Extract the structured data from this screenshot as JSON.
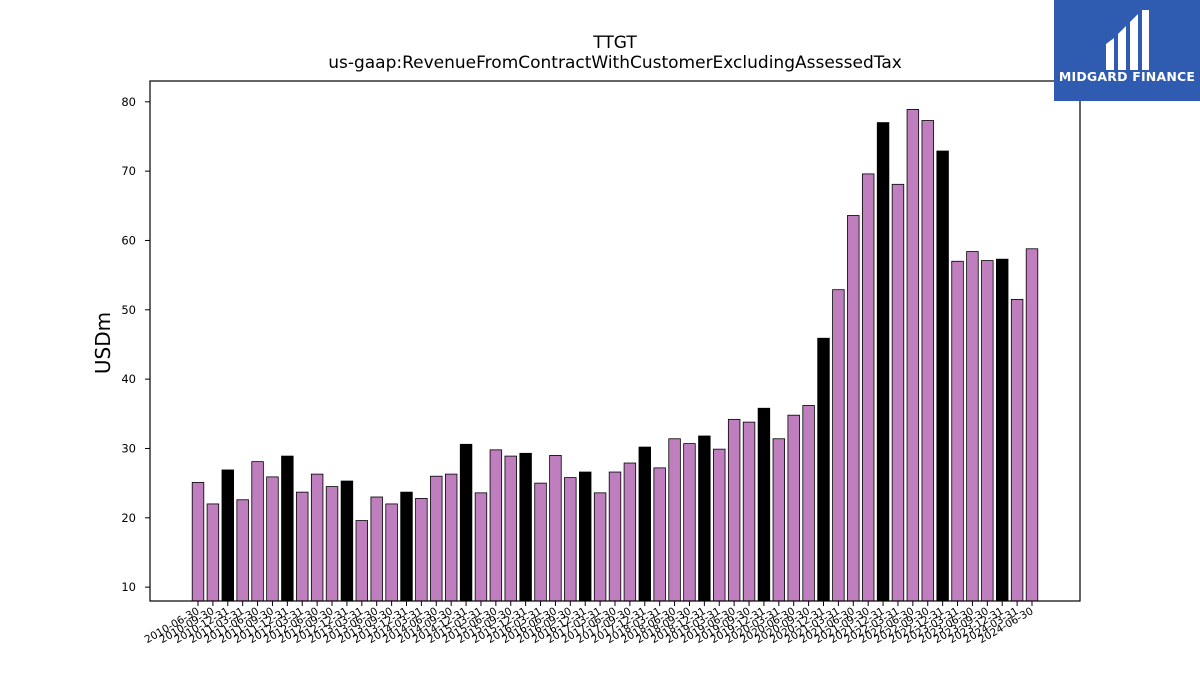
{
  "brand": {
    "name": "MIDGARD FINANCE",
    "logo_color": "#2f5cb0"
  },
  "chart_data": {
    "type": "bar",
    "title": "TTGT",
    "subtitle": "us-gaap:RevenueFromContractWithCustomerExcludingAssessedTax",
    "xlabel": "",
    "ylabel": "USDm",
    "ylim": [
      8,
      83
    ],
    "yticks": [
      10,
      20,
      30,
      40,
      50,
      60,
      70,
      80
    ],
    "grid": false,
    "colors": {
      "quarter": "#bf7fbf",
      "year_end": "#000000",
      "edge": "#000000"
    },
    "categories": [
      "2010-06-30",
      "2010-09-30",
      "2010-12-31",
      "2011-03-31",
      "2011-06-30",
      "2011-09-30",
      "2011-12-31",
      "2012-03-31",
      "2012-06-30",
      "2012-09-30",
      "2012-12-31",
      "2013-03-31",
      "2013-06-30",
      "2013-09-30",
      "2013-12-31",
      "2014-03-31",
      "2014-06-30",
      "2014-09-30",
      "2014-12-31",
      "2015-03-31",
      "2015-06-30",
      "2015-09-30",
      "2015-12-31",
      "2016-03-31",
      "2016-06-30",
      "2016-09-30",
      "2016-12-31",
      "2017-03-31",
      "2017-06-30",
      "2017-09-30",
      "2017-12-31",
      "2018-03-31",
      "2018-06-30",
      "2018-09-30",
      "2018-12-31",
      "2019-03-31",
      "2019-06-30",
      "2019-09-30",
      "2019-12-31",
      "2020-03-31",
      "2020-06-30",
      "2020-09-30",
      "2020-12-31",
      "2021-03-31",
      "2021-06-30",
      "2021-09-30",
      "2021-12-31",
      "2022-03-31",
      "2022-06-30",
      "2022-09-30",
      "2022-12-31",
      "2023-03-31",
      "2023-06-30",
      "2023-09-30",
      "2023-12-31",
      "2024-03-31",
      "2024-06-30"
    ],
    "tick_labels": [
      "2010-06-30",
      "2010-09-30",
      "2010-12-31",
      "2011-03-31",
      "2011-06-30",
      "2011-09-30",
      "2011-12-31",
      "2012-03-31",
      "2012-06-30",
      "2012-09-30",
      "2012-12-31",
      "2013-03-31",
      "2013-06-30",
      "2013-09-30",
      "2013-12-31",
      "2014-03-31",
      "2014-06-30",
      "2014-09-30",
      "2014-12-31",
      "2015-03-31",
      "2015-06-30",
      "2015-09-30",
      "2015-12-31",
      "2016-03-31",
      "2016-06-30",
      "2016-09-30",
      "2016-12-31",
      "2017-03-31",
      "2017-06-30",
      "2017-09-30",
      "2017-12-31",
      "2018-03-31",
      "2018-06-30",
      "2018-09-30",
      "2018-12-31",
      "2019-03-31",
      "2019-06-30",
      "2019-09-30",
      "2019-12-31",
      "2020-03-31",
      "2020-06-30",
      "2020-09-30",
      "2020-12-31",
      "2021-03-31",
      "2021-06-30",
      "2021-09-30",
      "2021-12-31",
      "2022-03-31",
      "2022-06-30",
      "2022-09-30",
      "2022-12-31",
      "2023-03-31",
      "2023-06-30",
      "2023-09-30",
      "2023-12-31",
      "2024-03-31",
      "2024-06-30"
    ],
    "values": [
      25.1,
      22.0,
      26.9,
      22.6,
      28.1,
      25.9,
      28.9,
      23.7,
      26.3,
      24.5,
      25.3,
      19.6,
      23.0,
      22.0,
      23.7,
      22.8,
      26.0,
      26.3,
      30.6,
      23.6,
      29.8,
      28.9,
      29.3,
      25.0,
      29.0,
      25.8,
      26.6,
      23.6,
      26.6,
      27.9,
      30.2,
      27.2,
      31.4,
      30.7,
      31.8,
      29.9,
      34.2,
      33.8,
      35.8,
      31.4,
      34.8,
      36.2,
      45.9,
      52.9,
      63.6,
      69.6,
      77.0,
      68.1,
      78.9,
      77.3,
      72.9,
      57.0,
      58.4,
      57.1,
      57.3,
      51.5,
      58.8
    ],
    "year_end": [
      false,
      false,
      true,
      false,
      false,
      false,
      true,
      false,
      false,
      false,
      true,
      false,
      false,
      false,
      true,
      false,
      false,
      false,
      true,
      false,
      false,
      false,
      true,
      false,
      false,
      false,
      true,
      false,
      false,
      false,
      true,
      false,
      false,
      false,
      true,
      false,
      false,
      false,
      true,
      false,
      false,
      false,
      true,
      false,
      false,
      false,
      true,
      false,
      false,
      false,
      true,
      false,
      false,
      false,
      true,
      false,
      false
    ]
  }
}
